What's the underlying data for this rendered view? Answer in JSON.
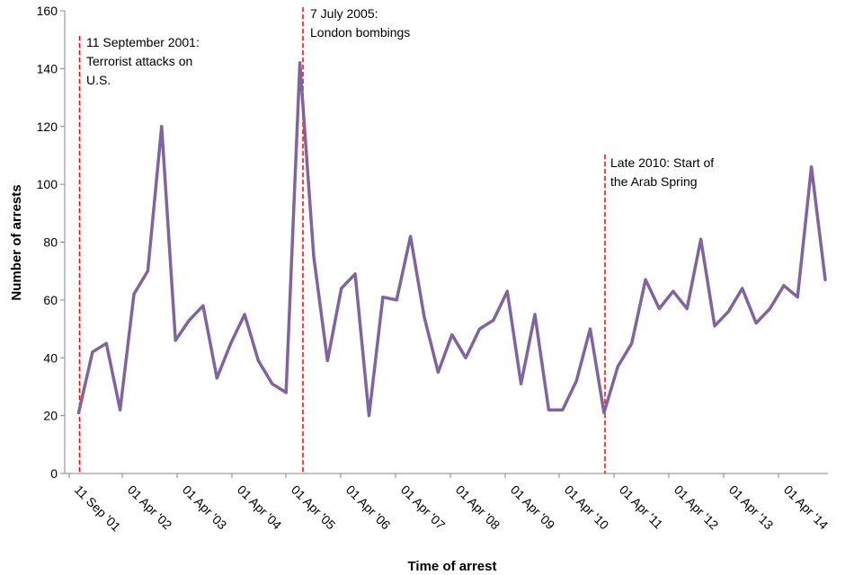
{
  "chart_data": {
    "type": "line",
    "title": "",
    "xlabel": "Time of arrest",
    "ylabel": "Number of arrests",
    "ylim": [
      0,
      160
    ],
    "yticks": [
      0,
      20,
      40,
      60,
      80,
      100,
      120,
      140,
      160
    ],
    "xticks": [
      "11 Sep '01",
      "01 Apr '02",
      "01 Apr '03",
      "01 Apr '04",
      "01 Apr '05",
      "01 Apr '06",
      "01 Apr '07",
      "01 Apr '08",
      "01 Apr '09",
      "01 Apr '10",
      "01 Apr '11",
      "01 Apr '12",
      "01 Apr '13",
      "01 Apr '14"
    ],
    "x_unit": "quarter (approximate)",
    "series": [
      {
        "name": "",
        "color": "#8064A2",
        "values": [
          21,
          42,
          45,
          22,
          62,
          70,
          120,
          46,
          53,
          58,
          33,
          45,
          55,
          39,
          31,
          28,
          142,
          75,
          39,
          64,
          69,
          20,
          61,
          60,
          82,
          54,
          35,
          48,
          40,
          50,
          53,
          63,
          31,
          55,
          22,
          22,
          32,
          50,
          21,
          37,
          45,
          67,
          57,
          63,
          57,
          81,
          51,
          56,
          64,
          52,
          57,
          65,
          61,
          106,
          67
        ]
      }
    ],
    "annotations": [
      {
        "index": 0,
        "lines": [
          "11 September 2001:",
          "Terrorist attacks on",
          "U.S."
        ],
        "color": "#FF0000"
      },
      {
        "index": 16,
        "lines": [
          "7 July 2005:",
          "London bombings"
        ],
        "color": "#FF0000"
      },
      {
        "index": 38,
        "lines": [
          "Late 2010: Start of",
          "the Arab Spring"
        ],
        "color": "#FF0000"
      }
    ],
    "grid": false,
    "legend": "none"
  }
}
